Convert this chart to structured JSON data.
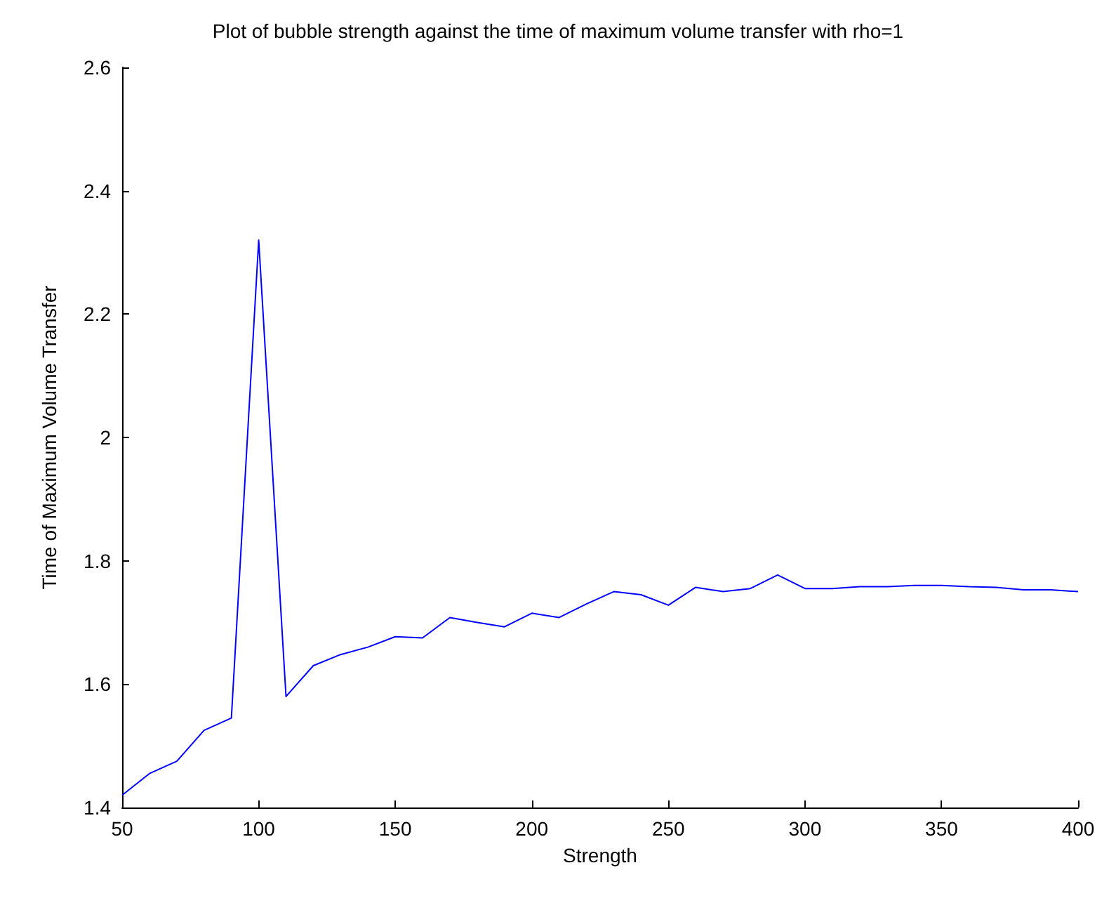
{
  "chart_data": {
    "type": "line",
    "title": "Plot of bubble strength against the time of maximum volume transfer with rho=1",
    "xlabel": "Strength",
    "ylabel": "Time of Maximum Volume Transfer",
    "x": [
      50,
      60,
      70,
      80,
      90,
      100,
      110,
      120,
      130,
      140,
      150,
      160,
      170,
      180,
      190,
      200,
      210,
      220,
      230,
      240,
      250,
      260,
      270,
      280,
      290,
      300,
      310,
      320,
      330,
      340,
      350,
      360,
      370,
      380,
      390,
      400
    ],
    "series": [
      {
        "color": "#0000ff",
        "values": [
          1.42,
          1.455,
          1.475,
          1.525,
          1.545,
          2.32,
          1.58,
          1.63,
          1.648,
          1.66,
          1.677,
          1.675,
          1.708,
          1.7,
          1.693,
          1.715,
          1.708,
          1.73,
          1.75,
          1.745,
          1.728,
          1.757,
          1.75,
          1.755,
          1.777,
          1.755,
          1.755,
          1.758,
          1.758,
          1.76,
          1.76,
          1.758,
          1.757,
          1.753,
          1.753,
          1.75
        ]
      }
    ],
    "xlim": [
      50,
      400
    ],
    "xticks": [
      50,
      100,
      150,
      200,
      250,
      300,
      350,
      400
    ],
    "ylim": [
      1.4,
      2.6
    ],
    "yticks": [
      1.4,
      1.6,
      1.8,
      2,
      2.2,
      2.4,
      2.6
    ],
    "grid": false,
    "marker": "none",
    "line_style": "solid"
  }
}
